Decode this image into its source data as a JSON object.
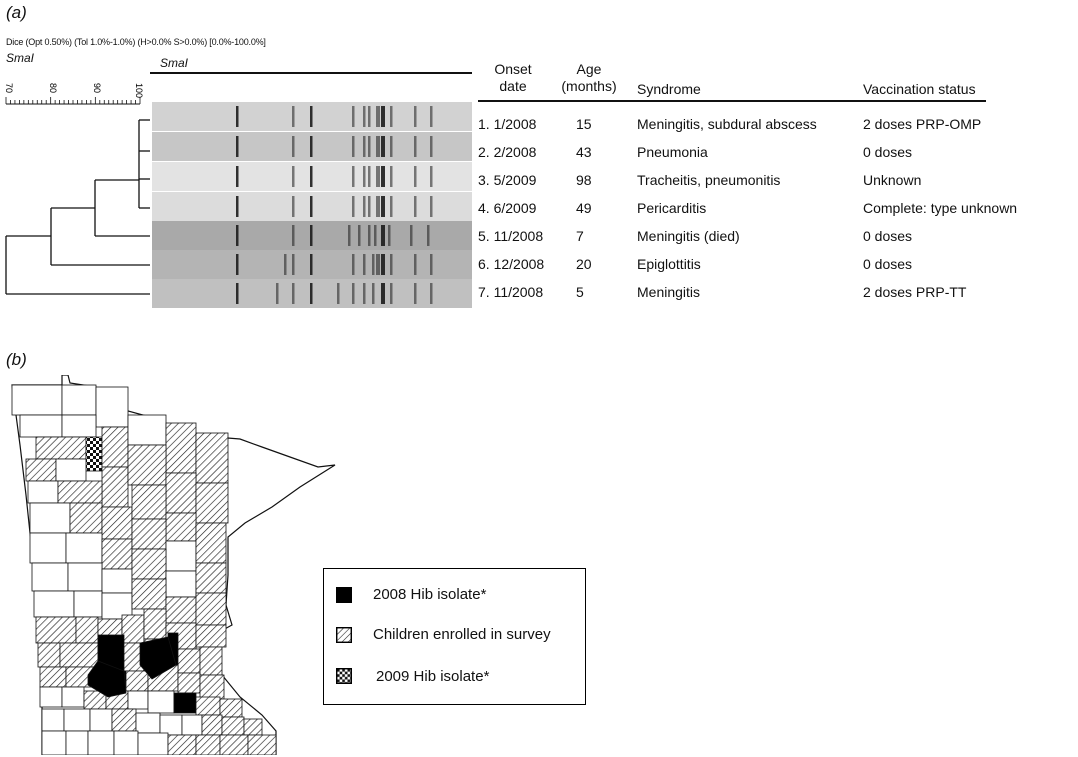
{
  "panel_a": {
    "label": "(a)",
    "method_line": "Dice (Opt 0.50%) (Tol 1.0%-1.0%) (H>0.0% S>0.0%) [0.0%-100.0%]",
    "enzyme_left": "SmaI",
    "enzyme_gel": "SmaI",
    "scale_ticks": [
      "70",
      "80",
      "90",
      "100"
    ],
    "headers": {
      "onset_date": "Onset date",
      "age": "Age (months)",
      "syndrome": "Syndrome",
      "vaccination": "Vaccination status"
    },
    "rows": [
      {
        "onset": "1. 1/2008",
        "age": "15",
        "syndrome": "Meningitis, subdural abscess",
        "vaccination": "2 doses PRP-OMP"
      },
      {
        "onset": "2. 2/2008",
        "age": "43",
        "syndrome": "Pneumonia",
        "vaccination": "0 doses"
      },
      {
        "onset": "3. 5/2009",
        "age": "98",
        "syndrome": "Tracheitis, pneumonitis",
        "vaccination": "Unknown"
      },
      {
        "onset": "4. 6/2009",
        "age": "49",
        "syndrome": "Pericarditis",
        "vaccination": "Complete: type unknown"
      },
      {
        "onset": "5. 11/2008",
        "age": "7",
        "syndrome": "Meningitis (died)",
        "vaccination": "0 doses"
      },
      {
        "onset": "6. 12/2008",
        "age": "20",
        "syndrome": "Epiglottitis",
        "vaccination": "0 doses"
      },
      {
        "onset": "7. 11/2008",
        "age": "5",
        "syndrome": "Meningitis",
        "vaccination": "2 doses PRP-TT"
      }
    ]
  },
  "panel_b": {
    "label": "(b)",
    "legend": [
      {
        "label": "2008 Hib isolate*",
        "pattern": "solid-black"
      },
      {
        "label": "Children enrolled in survey",
        "pattern": "diagonal-hatch"
      },
      {
        "label": "2009 Hib isolate*",
        "pattern": "checkerboard"
      }
    ]
  },
  "colors": {
    "ink": "#111111",
    "hatch_bg": "#ffffff",
    "gel_bg": "#d6d6d6",
    "band": "#222222"
  }
}
